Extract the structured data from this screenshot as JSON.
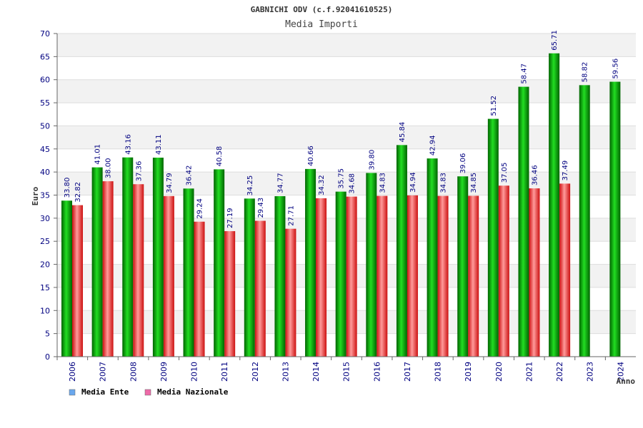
{
  "chart_data": {
    "type": "bar",
    "title": "GABNICHI ODV (c.f.92041610525)",
    "subtitle": "Media Importi",
    "xlabel": "Anno",
    "ylabel": "Euro",
    "ylim": [
      0,
      70
    ],
    "y_ticks": [
      0,
      5,
      10,
      15,
      20,
      25,
      30,
      35,
      40,
      45,
      50,
      55,
      60,
      65,
      70
    ],
    "grid": true,
    "legend_position": "bottom-left",
    "categories": [
      "2006",
      "2007",
      "2008",
      "2009",
      "2010",
      "2011",
      "2012",
      "2013",
      "2014",
      "2015",
      "2016",
      "2017",
      "2018",
      "2019",
      "2020",
      "2021",
      "2022",
      "2023",
      "2024"
    ],
    "series": [
      {
        "name": "Media Ente",
        "color": "#00aa00",
        "legend_color": "#6aa8ee",
        "values": [
          33.8,
          41.01,
          43.16,
          43.11,
          36.42,
          40.58,
          34.25,
          34.77,
          40.66,
          35.75,
          39.8,
          45.84,
          42.94,
          39.06,
          51.52,
          58.47,
          65.71,
          58.82,
          59.56
        ],
        "labels": [
          "33.80",
          "41.01",
          "43.16",
          "43.11",
          "36.42",
          "40.58",
          "34.25",
          "34.77",
          "40.66",
          "35.75",
          "39.80",
          "45.84",
          "42.94",
          "39.06",
          "51.52",
          "58.47",
          "65.71",
          "58.82",
          "59.56"
        ]
      },
      {
        "name": "Media Nazionale",
        "color": "#e83c3c",
        "legend_color": "#ee6aa8",
        "values": [
          32.82,
          38.0,
          37.36,
          34.79,
          29.24,
          27.19,
          29.43,
          27.71,
          34.32,
          34.68,
          34.83,
          34.94,
          34.83,
          34.85,
          37.05,
          36.46,
          37.49,
          null,
          null
        ],
        "labels": [
          "32.82",
          "38.00",
          "37.36",
          "34.79",
          "29.24",
          "27.19",
          "29.43",
          "27.71",
          "34.32",
          "34.68",
          "34.83",
          "34.94",
          "34.83",
          "34.85",
          "37.05",
          "36.46",
          "37.49",
          "",
          ""
        ]
      }
    ]
  }
}
